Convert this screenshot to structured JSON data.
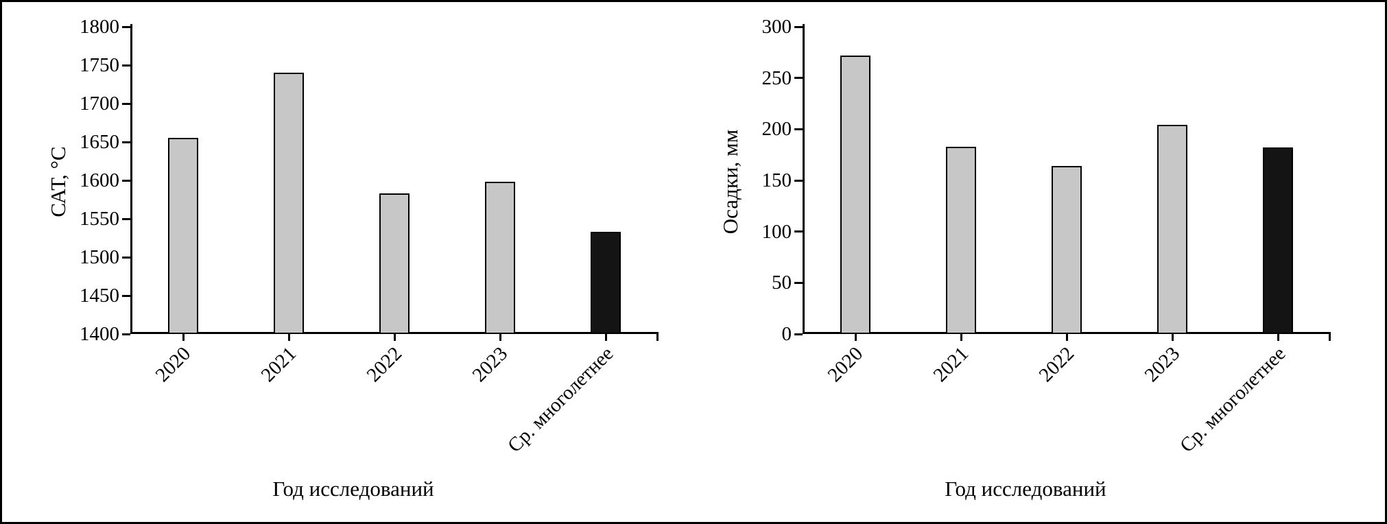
{
  "figure": {
    "background": "#ffffff",
    "border_color": "#000000",
    "bar_fill_gray": "#c7c7c7",
    "bar_fill_black": "#141414"
  },
  "chart_data": [
    {
      "type": "bar",
      "title": "",
      "xlabel": "Год исследований",
      "ylabel": "САТ, °С",
      "categories": [
        "2020",
        "2021",
        "2022",
        "2023",
        "Ср. многолетнее"
      ],
      "values": [
        1655,
        1740,
        1583,
        1598,
        1533
      ],
      "ylim": [
        1400,
        1800
      ],
      "ytick_step": 50,
      "yticks": [
        1400,
        1450,
        1500,
        1550,
        1600,
        1650,
        1700,
        1750,
        1800
      ],
      "bar_colors": [
        "#c7c7c7",
        "#c7c7c7",
        "#c7c7c7",
        "#c7c7c7",
        "#141414"
      ],
      "grid": false,
      "x_tick_label_rotation_deg": 45
    },
    {
      "type": "bar",
      "title": "",
      "xlabel": "Год исследований",
      "ylabel": "Осадки, мм",
      "categories": [
        "2020",
        "2021",
        "2022",
        "2023",
        "Ср. многолетнее"
      ],
      "values": [
        272,
        183,
        164,
        204,
        182
      ],
      "ylim": [
        0,
        300
      ],
      "ytick_step": 50,
      "yticks": [
        0,
        50,
        100,
        150,
        200,
        250,
        300
      ],
      "bar_colors": [
        "#c7c7c7",
        "#c7c7c7",
        "#c7c7c7",
        "#c7c7c7",
        "#141414"
      ],
      "grid": false,
      "x_tick_label_rotation_deg": 45
    }
  ]
}
